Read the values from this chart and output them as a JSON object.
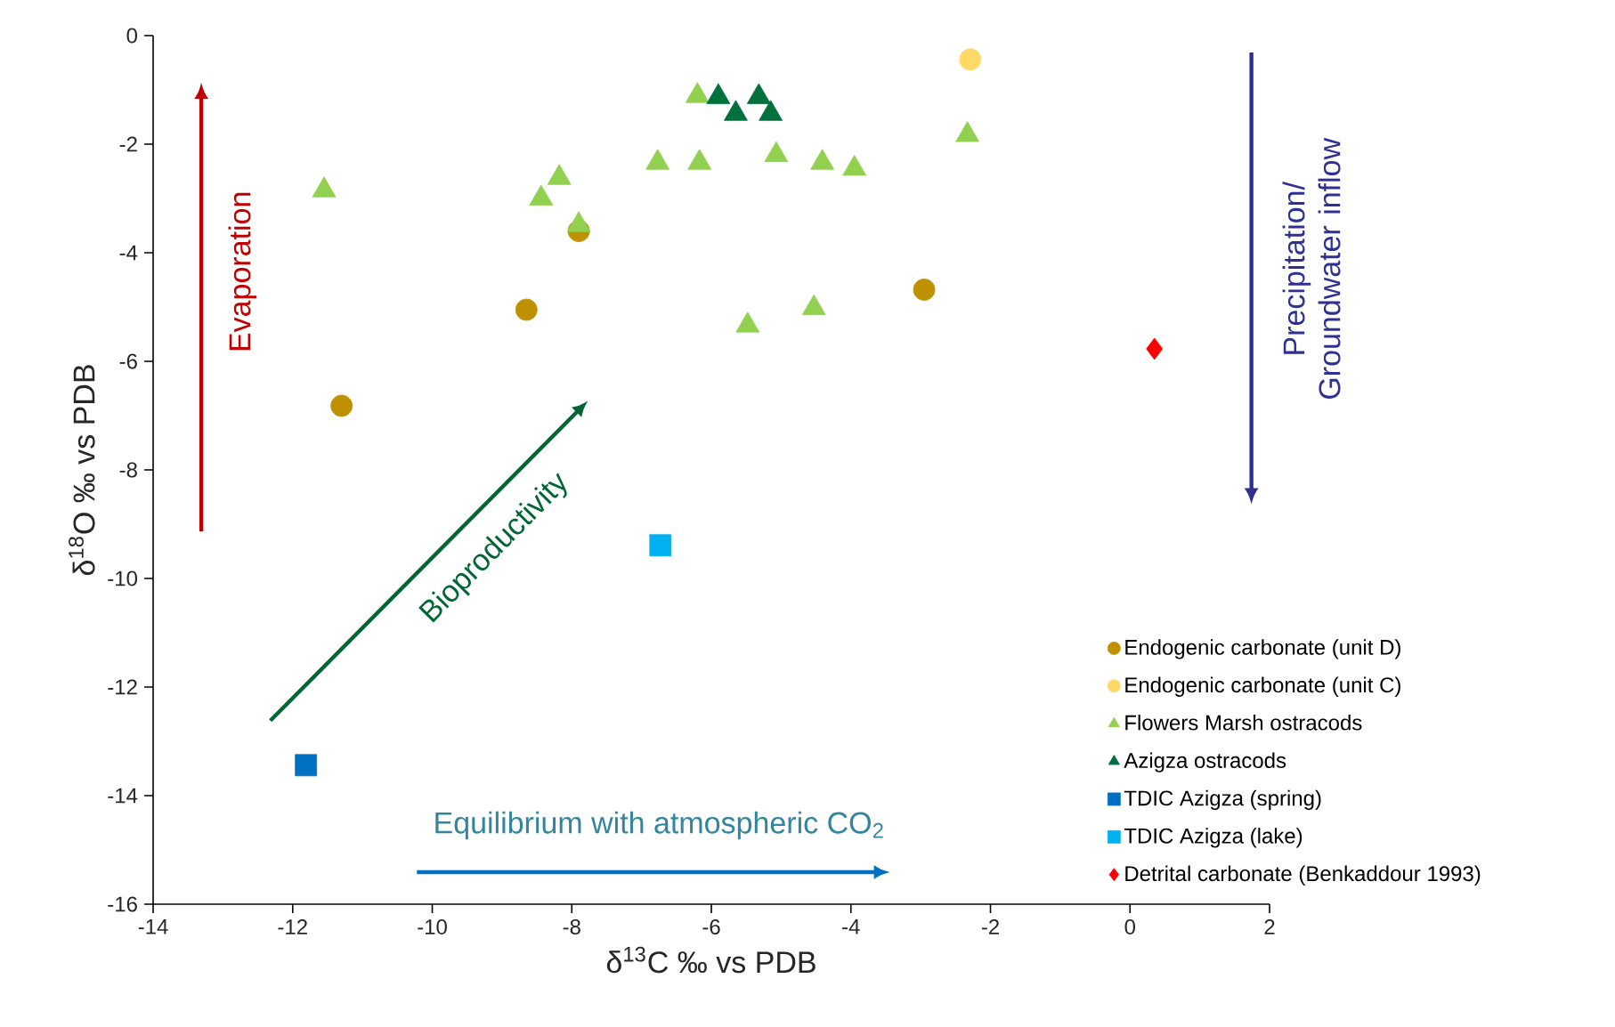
{
  "chart_data": {
    "type": "scatter",
    "xlabel": "δ$^{13}$C ‰ vs PDB",
    "ylabel": "δ$^{18}$O ‰ vs PDB",
    "xlim": [
      -14,
      2
    ],
    "ylim": [
      -16,
      0
    ],
    "xticks": [
      -14,
      -12,
      -10,
      -8,
      -6,
      -4,
      -2,
      0,
      2
    ],
    "yticks": [
      -16,
      -14,
      -12,
      -10,
      -8,
      -6,
      -4,
      -2,
      0
    ],
    "legend": "bottom right",
    "series": [
      {
        "name": "Endogenic carbonate (unit D)",
        "color": "#bf9000",
        "marker": "circle",
        "x": [
          -11.3,
          -8.65,
          -7.9,
          -2.95
        ],
        "values": [
          -6.82,
          -5.05,
          -3.6,
          -4.68
        ]
      },
      {
        "name": "Endogenic carbonate (unit C)",
        "color": "#ffd966",
        "marker": "circle",
        "x": [
          -2.29
        ],
        "values": [
          -0.44
        ]
      },
      {
        "name": "Flowers Marsh ostracods",
        "color": "#92d050",
        "marker": "triangle",
        "x": [
          -11.55,
          -8.44,
          -8.18,
          -7.9,
          -6.77,
          -6.2,
          -6.17,
          -5.07,
          -4.41,
          -3.95,
          -2.33,
          -5.48,
          -4.53
        ],
        "values": [
          -2.85,
          -3.0,
          -2.62,
          -3.49,
          -2.34,
          -1.11,
          -2.34,
          -2.2,
          -2.34,
          -2.45,
          -1.83,
          -5.34,
          -5.02
        ]
      },
      {
        "name": "Azigza ostracods",
        "color": "#00703c",
        "marker": "triangle",
        "x": [
          -5.9,
          -5.65,
          -5.32,
          -5.15
        ],
        "values": [
          -1.13,
          -1.44,
          -1.13,
          -1.44
        ]
      },
      {
        "name": "TDIC Azigza (spring)",
        "color": "#0070c0",
        "marker": "square",
        "x": [
          -11.81
        ],
        "values": [
          -13.44
        ]
      },
      {
        "name": "TDIC Azigza (lake)",
        "color": "#00b0f0",
        "marker": "square",
        "x": [
          -6.73
        ],
        "values": [
          -9.39
        ]
      },
      {
        "name": "Detrital carbonate (Benkaddour 1993)",
        "color": "#ff0000",
        "marker": "diamond",
        "x": [
          0.35
        ],
        "values": [
          -5.77
        ]
      }
    ],
    "annotations": [
      "Evaporation",
      "Bioproductivity",
      "Precipitation/ Groundwater inflow",
      "Equilibrium with atmospheric CO$_{2}$"
    ]
  }
}
